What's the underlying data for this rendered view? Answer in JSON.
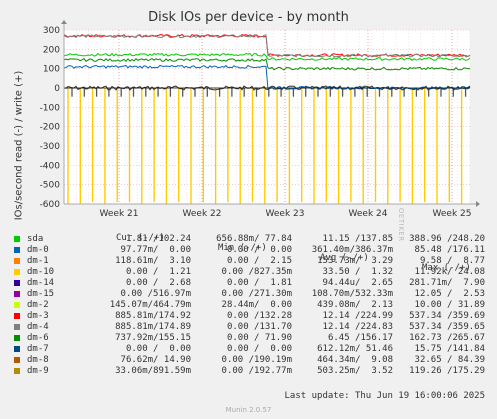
{
  "title": "Disk IOs per device - by month",
  "ylabel": "IOs/second read (-) / write (+)",
  "watermark": "RRDTOOL / TOBI OETIKER",
  "headers": {
    "cur": "Cur (-/+)",
    "min": "Min (-/+)",
    "avg": "Avg (-/+)",
    "max": "Max (-/+)"
  },
  "rows": [
    {
      "name": "sda",
      "color": "#00cc00",
      "cur": "1.81 /102.24",
      "min": "656.88m/ 77.84",
      "avg": "11.15 /137.85",
      "max": "388.96 /248.20"
    },
    {
      "name": "dm-0",
      "color": "#0066b3",
      "cur": "97.77m/  0.00",
      "min": "0.00 /  0.00",
      "avg": "361.40m/386.37m",
      "max": "85.48 /176.11"
    },
    {
      "name": "dm-1",
      "color": "#ff8000",
      "cur": "118.61m/  3.10",
      "min": "0.00 /  2.15",
      "avg": "153.73m/  3.29",
      "max": "9.58 /  8.77"
    },
    {
      "name": "dm-10",
      "color": "#ffcc00",
      "cur": "0.00 /  1.21",
      "min": "0.00 /827.35m",
      "avg": "33.50 /  1.32",
      "max": "11.92k/ 24.08"
    },
    {
      "name": "dm-14",
      "color": "#330099",
      "cur": "0.00 /  2.68",
      "min": "0.00 /  1.81",
      "avg": "94.44u/  2.65",
      "max": "281.71m/  7.90"
    },
    {
      "name": "dm-15",
      "color": "#990099",
      "cur": "0.00 /516.97m",
      "min": "0.00 /271.30m",
      "avg": "108.70m/532.33m",
      "max": "12.05 /  2.53"
    },
    {
      "name": "dm-2",
      "color": "#ccff00",
      "cur": "145.07m/464.79m",
      "min": "28.44m/  0.00",
      "avg": "439.08m/  2.13",
      "max": "10.00 / 31.89"
    },
    {
      "name": "dm-3",
      "color": "#ff0000",
      "cur": "885.81m/174.92",
      "min": "0.00 /132.28",
      "avg": "12.14 /224.99",
      "max": "537.34 /359.69"
    },
    {
      "name": "dm-4",
      "color": "#808080",
      "cur": "885.81m/174.89",
      "min": "0.00 /131.70",
      "avg": "12.14 /224.83",
      "max": "537.34 /359.65"
    },
    {
      "name": "dm-6",
      "color": "#008f00",
      "cur": "737.92m/155.15",
      "min": "0.00 / 71.90",
      "avg": "6.45 /156.17",
      "max": "162.73 /265.67"
    },
    {
      "name": "dm-7",
      "color": "#00487d",
      "cur": "0.00 /  0.00",
      "min": "0.00 /  0.00",
      "avg": "612.12m/ 51.46",
      "max": "15.75 /141.84"
    },
    {
      "name": "dm-8",
      "color": "#b35a00",
      "cur": "76.62m/ 14.90",
      "min": "0.00 /190.19m",
      "avg": "464.34m/  9.08",
      "max": "32.65 / 84.39"
    },
    {
      "name": "dm-9",
      "color": "#b38f00",
      "cur": "33.06m/891.59m",
      "min": "0.00 /192.77m",
      "avg": "503.25m/  3.52",
      "max": "119.26 /175.29"
    }
  ],
  "last_update": "Last update: Thu Jun 19 16:00:06 2025",
  "munin_version": "Munin 2.0.57",
  "chart_data": {
    "type": "line",
    "title": "Disk IOs per device - by month",
    "ylabel": "IOs/second read (-) / write (+)",
    "ylim": [
      -600,
      300
    ],
    "yticks": [
      300,
      200,
      100,
      0,
      -100,
      -200,
      -300,
      -400,
      -500,
      -600
    ],
    "xticks": [
      "Week 21",
      "Week 22",
      "Week 23",
      "Week 24",
      "Week 25"
    ],
    "grid": true,
    "series": [
      {
        "name": "dm-3",
        "color": "#ff0000",
        "level_before": 270,
        "level_after": 170
      },
      {
        "name": "dm-4",
        "color": "#808080",
        "level_before": 268,
        "level_after": 168
      },
      {
        "name": "sda",
        "color": "#00cc00",
        "level_before": 172,
        "level_after": 150
      },
      {
        "name": "dm-6",
        "color": "#008f00",
        "level_before": 145,
        "level_after": 100
      },
      {
        "name": "dm-0",
        "color": "#0066b3",
        "level_before": 110,
        "level_after": 0
      },
      {
        "name": "dm-10",
        "color": "#ffcc00",
        "read_spike": -600
      }
    ]
  }
}
